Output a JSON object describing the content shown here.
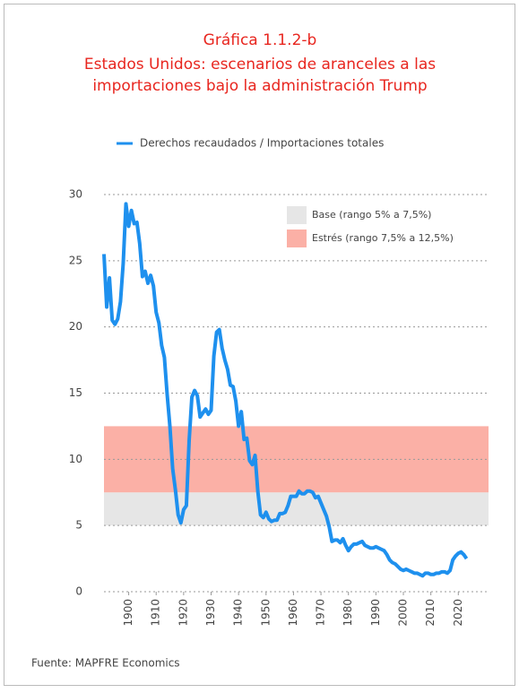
{
  "chart_data": {
    "type": "line",
    "title": "Gráfica 1.1.2-b",
    "subtitle": [
      "Estados Unidos: escenarios de aranceles a las",
      "importaciones bajo la administración Trump"
    ],
    "source": "Fuente: MAPFRE Economics",
    "x": [
      1891,
      1892,
      1893,
      1894,
      1895,
      1896,
      1897,
      1898,
      1899,
      1900,
      1901,
      1902,
      1903,
      1904,
      1905,
      1906,
      1907,
      1908,
      1909,
      1910,
      1911,
      1912,
      1913,
      1914,
      1915,
      1916,
      1917,
      1918,
      1919,
      1920,
      1921,
      1922,
      1923,
      1924,
      1925,
      1926,
      1927,
      1928,
      1929,
      1930,
      1931,
      1932,
      1933,
      1934,
      1935,
      1936,
      1937,
      1938,
      1939,
      1940,
      1941,
      1942,
      1943,
      1944,
      1945,
      1946,
      1947,
      1948,
      1949,
      1950,
      1951,
      1952,
      1953,
      1954,
      1955,
      1956,
      1957,
      1958,
      1959,
      1960,
      1961,
      1962,
      1963,
      1964,
      1965,
      1966,
      1967,
      1968,
      1969,
      1970,
      1971,
      1972,
      1973,
      1974,
      1975,
      1976,
      1977,
      1978,
      1979,
      1980,
      1981,
      1982,
      1983,
      1984,
      1985,
      1986,
      1987,
      1988,
      1989,
      1990,
      1991,
      1992,
      1993,
      1994,
      1995,
      1996,
      1997,
      1998,
      1999,
      2000,
      2001,
      2002,
      2003,
      2004,
      2005,
      2006,
      2007,
      2008,
      2009,
      2010,
      2011,
      2012,
      2013,
      2014,
      2015,
      2016,
      2017,
      2018,
      2019,
      2020,
      2021,
      2022,
      2023
    ],
    "series": [
      {
        "name": "Derechos recaudados / Importaciones totales",
        "color": "#1e90ee",
        "values": [
          25.5,
          21.5,
          23.7,
          20.5,
          20.2,
          20.6,
          21.9,
          24.8,
          29.3,
          27.6,
          28.8,
          27.8,
          27.9,
          26.3,
          23.8,
          24.2,
          23.3,
          23.9,
          23.1,
          21.1,
          20.3,
          18.6,
          17.7,
          14.9,
          12.5,
          9.3,
          7.7,
          5.8,
          5.2,
          6.2,
          6.5,
          11.4,
          14.7,
          15.2,
          14.8,
          13.2,
          13.5,
          13.8,
          13.4,
          13.7,
          17.8,
          19.6,
          19.8,
          18.4,
          17.5,
          16.8,
          15.6,
          15.5,
          14.4,
          12.5,
          13.6,
          11.5,
          11.6,
          9.9,
          9.6,
          10.3,
          7.6,
          5.8,
          5.6,
          6.0,
          5.5,
          5.3,
          5.4,
          5.4,
          5.9,
          5.9,
          6.0,
          6.5,
          7.2,
          7.2,
          7.2,
          7.6,
          7.4,
          7.4,
          7.6,
          7.6,
          7.5,
          7.1,
          7.2,
          6.7,
          6.2,
          5.7,
          4.9,
          3.8,
          3.9,
          3.9,
          3.7,
          4.0,
          3.5,
          3.1,
          3.4,
          3.6,
          3.6,
          3.7,
          3.8,
          3.5,
          3.4,
          3.3,
          3.3,
          3.4,
          3.3,
          3.2,
          3.1,
          2.8,
          2.4,
          2.2,
          2.1,
          1.9,
          1.7,
          1.6,
          1.7,
          1.6,
          1.5,
          1.4,
          1.4,
          1.3,
          1.2,
          1.4,
          1.4,
          1.3,
          1.3,
          1.4,
          1.4,
          1.5,
          1.5,
          1.4,
          1.6,
          2.4,
          2.7,
          2.9,
          3.0,
          2.8,
          2.5
        ]
      }
    ],
    "bands": [
      {
        "name": "Base (rango 5% a 7,5%)",
        "from": 5,
        "to": 7.5,
        "color": "#e6e6e6"
      },
      {
        "name": "Estrés (rango 7,5% a 12,5%)",
        "from": 7.5,
        "to": 12.5,
        "color": "#fbb0a6"
      }
    ],
    "xlim": [
      1891,
      2031
    ],
    "xticks": [
      1900,
      1910,
      1920,
      1930,
      1940,
      1950,
      1960,
      1970,
      1980,
      1990,
      2000,
      2010,
      2020
    ],
    "ylim": [
      0,
      30
    ],
    "yticks": [
      0,
      5,
      10,
      15,
      20,
      25,
      30
    ],
    "grid": true
  }
}
